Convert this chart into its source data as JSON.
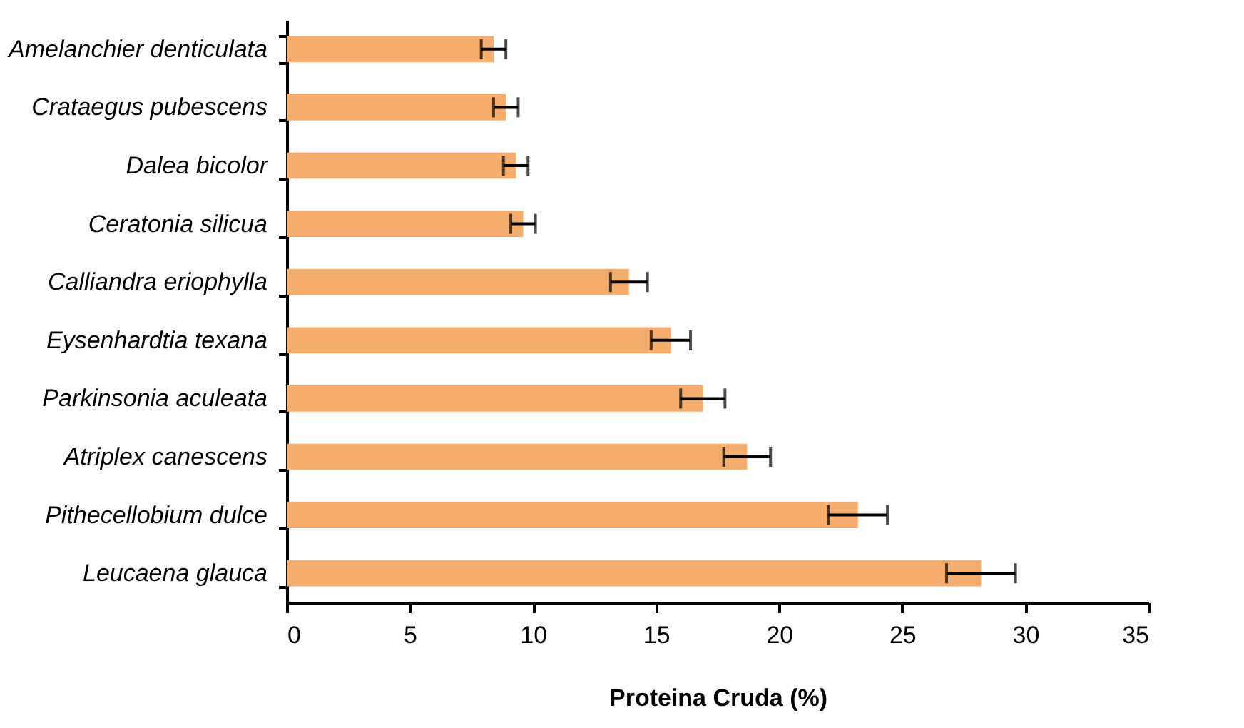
{
  "chart_data": {
    "type": "bar",
    "orientation": "horizontal",
    "xlabel": "Proteina Cruda (%)",
    "categories": [
      "Amelanchier denticulata",
      "Crataegus pubescens",
      "Dalea bicolor",
      "Ceratonia silicua",
      "Calliandra eriophylla",
      "Eysenhardtia texana",
      "Parkinsonia aculeata",
      "Atriplex canescens",
      "Pithecellobium dulce",
      "Leucaena glauca"
    ],
    "values": [
      8.4,
      8.9,
      9.3,
      9.6,
      13.9,
      15.6,
      16.9,
      18.7,
      23.2,
      28.2
    ],
    "errors": [
      0.5,
      0.5,
      0.5,
      0.5,
      0.75,
      0.8,
      0.9,
      0.95,
      1.2,
      1.4
    ],
    "color": "#f5ae6e",
    "xlim": [
      0,
      35
    ],
    "xticks": [
      0,
      5,
      10,
      15,
      20,
      25,
      30,
      35
    ],
    "grid": false
  }
}
